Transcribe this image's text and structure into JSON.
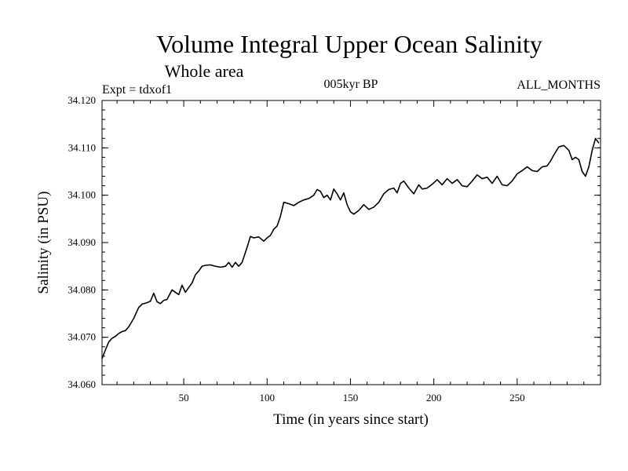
{
  "chart_data": {
    "type": "line",
    "title": "Volume Integral Upper Ocean Salinity",
    "subtitle": "Whole area",
    "expt_label": "Expt = tdxof1",
    "period_label": "005kyr BP",
    "months_label": "ALL_MONTHS",
    "xlabel": "Time (in years since start)",
    "ylabel": "Salinity (in PSU)",
    "xlim": [
      1,
      300
    ],
    "ylim": [
      34.06,
      34.12
    ],
    "xticks": [
      50,
      100,
      150,
      200,
      250
    ],
    "xtick_labels": [
      "50",
      "100",
      "150",
      "200",
      "250"
    ],
    "yticks": [
      34.06,
      34.07,
      34.08,
      34.09,
      34.1,
      34.11,
      34.12
    ],
    "ytick_labels": [
      "34.060",
      "34.070",
      "34.080",
      "34.090",
      "34.100",
      "34.110",
      "34.120"
    ],
    "series": [
      {
        "name": "Salinity",
        "x": [
          1,
          3,
          5,
          7,
          9,
          11,
          13,
          15,
          17,
          20,
          23,
          25,
          28,
          30,
          32,
          34,
          36,
          38,
          40,
          43,
          45,
          47,
          49,
          51,
          53,
          55,
          57,
          59,
          61,
          63,
          66,
          69,
          72,
          75,
          77,
          79,
          81,
          83,
          85,
          88,
          90,
          92,
          95,
          98,
          100,
          102,
          104,
          106,
          108,
          110,
          113,
          116,
          119,
          122,
          125,
          128,
          130,
          132,
          134,
          136,
          138,
          140,
          142,
          144,
          146,
          148,
          150,
          152,
          155,
          158,
          161,
          164,
          167,
          170,
          173,
          176,
          178,
          180,
          182,
          185,
          188,
          191,
          193,
          196,
          199,
          202,
          205,
          208,
          211,
          214,
          217,
          220,
          223,
          226,
          229,
          232,
          235,
          238,
          241,
          244,
          247,
          250,
          253,
          256,
          259,
          262,
          265,
          268,
          270,
          272,
          275,
          278,
          281,
          283,
          285,
          287,
          289,
          291,
          293,
          295,
          297,
          299
        ],
        "values": [
          34.0655,
          34.0673,
          34.069,
          34.0698,
          34.0702,
          34.0708,
          34.0712,
          34.0714,
          34.0722,
          34.074,
          34.0763,
          34.077,
          34.0773,
          34.0776,
          34.0793,
          34.0775,
          34.0771,
          34.0778,
          34.078,
          34.08,
          34.0795,
          34.079,
          34.081,
          34.0795,
          34.0805,
          34.0815,
          34.0832,
          34.084,
          34.085,
          34.0852,
          34.0853,
          34.085,
          34.0848,
          34.085,
          34.0858,
          34.0848,
          34.0858,
          34.085,
          34.0858,
          34.089,
          34.0913,
          34.091,
          34.0912,
          34.0903,
          34.091,
          34.0915,
          34.0928,
          34.0935,
          34.0955,
          34.0985,
          34.0982,
          34.0978,
          34.0985,
          34.099,
          34.0993,
          34.1,
          34.1012,
          34.1008,
          34.0995,
          34.1,
          34.099,
          34.1013,
          34.1003,
          34.099,
          34.1005,
          34.098,
          34.0965,
          34.096,
          34.0968,
          34.098,
          34.097,
          34.0975,
          34.0985,
          34.1003,
          34.1012,
          34.1015,
          34.1005,
          34.1025,
          34.103,
          34.1015,
          34.1003,
          34.1022,
          34.1013,
          34.1015,
          34.1023,
          34.1033,
          34.1022,
          34.1035,
          34.1025,
          34.1033,
          34.102,
          34.1018,
          34.103,
          34.1043,
          34.1035,
          34.1038,
          34.1025,
          34.104,
          34.1022,
          34.102,
          34.103,
          34.1045,
          34.1052,
          34.106,
          34.1052,
          34.105,
          34.106,
          34.1062,
          34.1072,
          34.1085,
          34.1102,
          34.1105,
          34.1095,
          34.1075,
          34.108,
          34.1075,
          34.105,
          34.104,
          34.106,
          34.1095,
          34.112,
          34.111
        ]
      }
    ]
  }
}
